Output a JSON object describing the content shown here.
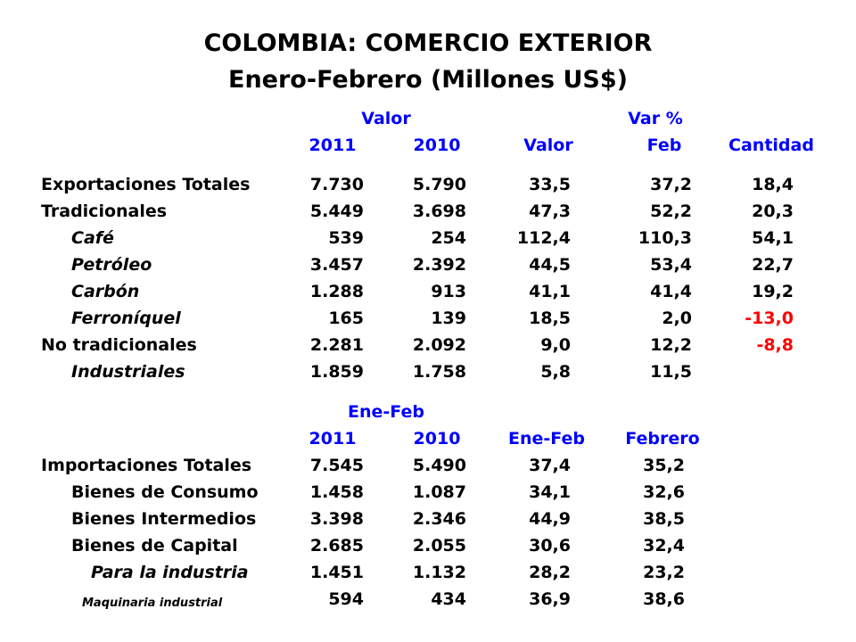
{
  "title": {
    "line1": "COLOMBIA: COMERCIO EXTERIOR",
    "line2": "Enero-Febrero  (Millones US$)"
  },
  "exports": {
    "group_headers": {
      "valor": "Valor",
      "var_pct": "Var %"
    },
    "columns": [
      "2011",
      "2010",
      "Valor",
      "Feb",
      "Cantidad"
    ],
    "rows": [
      {
        "label": "Exportaciones Totales",
        "y2011": "7.730",
        "y2010": "5.790",
        "valor": "33,5",
        "feb": "37,2",
        "cantidad": "18,4"
      },
      {
        "label": "Tradicionales",
        "y2011": "5.449",
        "y2010": "3.698",
        "valor": "47,3",
        "feb": "52,2",
        "cantidad": "20,3"
      },
      {
        "label": "Café",
        "y2011": "539",
        "y2010": "254",
        "valor": "112,4",
        "feb": "110,3",
        "cantidad": "54,1"
      },
      {
        "label": "Petróleo",
        "y2011": "3.457",
        "y2010": "2.392",
        "valor": "44,5",
        "feb": "53,4",
        "cantidad": "22,7"
      },
      {
        "label": "Carbón",
        "y2011": "1.288",
        "y2010": "913",
        "valor": "41,1",
        "feb": "41,4",
        "cantidad": "19,2"
      },
      {
        "label": "Ferroníquel",
        "y2011": "165",
        "y2010": "139",
        "valor": "18,5",
        "feb": "2,0",
        "cantidad": "-13,0"
      },
      {
        "label": "No tradicionales",
        "y2011": "2.281",
        "y2010": "2.092",
        "valor": "9,0",
        "feb": "12,2",
        "cantidad": "-8,8"
      },
      {
        "label": "Industriales",
        "y2011": "1.859",
        "y2010": "1.758",
        "valor": "5,8",
        "feb": "11,5",
        "cantidad": ""
      }
    ]
  },
  "imports": {
    "group_header": "Ene-Feb",
    "columns": [
      "2011",
      "2010",
      "Ene-Feb",
      "Febrero"
    ],
    "rows": [
      {
        "label": "Importaciones Totales",
        "y2011": "7.545",
        "y2010": "5.490",
        "ene_feb": "37,4",
        "febrero": "35,2"
      },
      {
        "label": "Bienes de Consumo",
        "y2011": "1.458",
        "y2010": "1.087",
        "ene_feb": "34,1",
        "febrero": "32,6"
      },
      {
        "label": "Bienes Intermedios",
        "y2011": "3.398",
        "y2010": "2.346",
        "ene_feb": "44,9",
        "febrero": "38,5"
      },
      {
        "label": "Bienes de Capital",
        "y2011": "2.685",
        "y2010": "2.055",
        "ene_feb": "30,6",
        "febrero": "32,4"
      },
      {
        "label": "Para la industria",
        "y2011": "1.451",
        "y2010": "1.132",
        "ene_feb": "28,2",
        "febrero": "23,2"
      },
      {
        "label": "Maquinaria industrial",
        "y2011": "594",
        "y2010": "434",
        "ene_feb": "36,9",
        "febrero": "38,6"
      }
    ]
  },
  "colors": {
    "header": "#0000ff",
    "negative": "#ff0000",
    "text": "#000000"
  }
}
